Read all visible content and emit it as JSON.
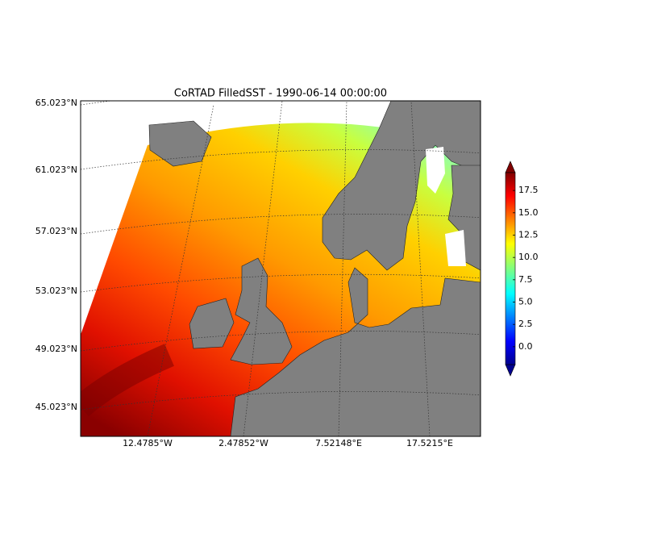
{
  "title": "CoRTAD FilledSST - 1990-06-14 00:00:00",
  "lat_labels": [
    "65.023°N",
    "61.023°N",
    "57.023°N",
    "53.023°N",
    "49.023°N",
    "45.023°N"
  ],
  "lon_labels": [
    "12.4785°W",
    "2.47852°W",
    "7.52148°E",
    "17.5215°E"
  ],
  "colorbar": {
    "range": [
      -2,
      19.5
    ],
    "ticks": [
      {
        "value": 0,
        "label": "0.0"
      },
      {
        "value": 2.5,
        "label": "2.5"
      },
      {
        "value": 5,
        "label": "5.0"
      },
      {
        "value": 7.5,
        "label": "7.5"
      },
      {
        "value": 10,
        "label": "10.0"
      },
      {
        "value": 12.5,
        "label": "12.5"
      },
      {
        "value": 15,
        "label": "15.0"
      },
      {
        "value": 17.5,
        "label": "17.5"
      }
    ]
  }
}
